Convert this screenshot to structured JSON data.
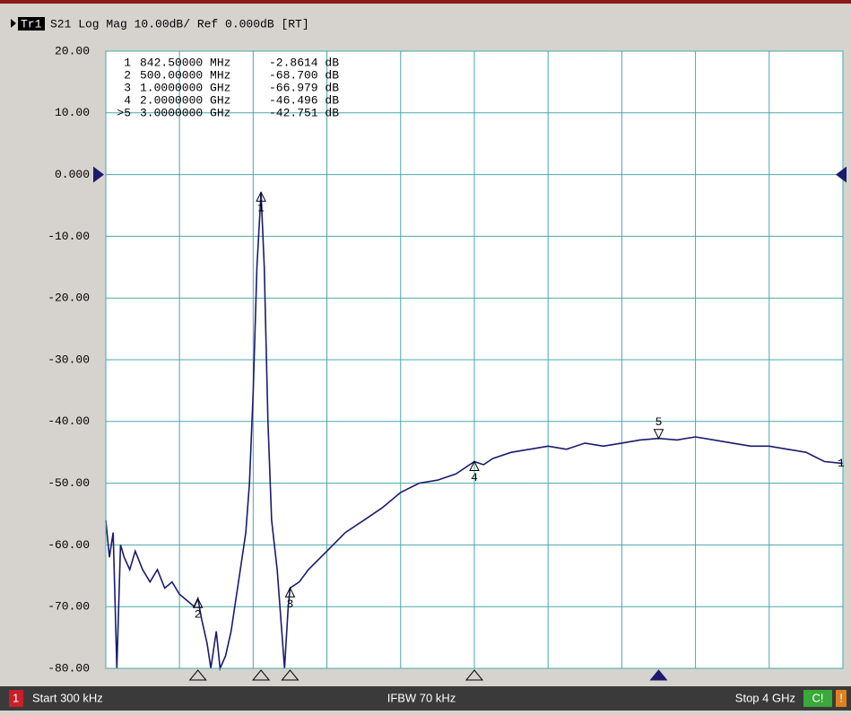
{
  "header": {
    "trace": "Tr1",
    "text": "S21 Log Mag 10.00dB/ Ref 0.000dB [RT]"
  },
  "status_bar": {
    "channel": "1",
    "start": "Start 300 kHz",
    "ifbw": "IFBW 70 kHz",
    "stop": "Stop 4 GHz",
    "cal": "C!",
    "warning": "!"
  },
  "markers": [
    {
      "id": "1",
      "stimulus": "842.50000 MHz",
      "response": "-2.8614 dB",
      "label": "1",
      "x": 0.8425,
      "y": -2.8614
    },
    {
      "id": "2",
      "stimulus": "500.00000 MHz",
      "response": "-68.700 dB",
      "label": "2",
      "x": 0.5,
      "y": -68.7
    },
    {
      "id": "3",
      "stimulus": "1.0000000 GHz",
      "response": "-66.979 dB",
      "label": "3",
      "x": 1.0,
      "y": -66.979
    },
    {
      "id": "4",
      "stimulus": "2.0000000 GHz",
      "response": "-46.496 dB",
      "label": "4",
      "x": 2.0,
      "y": -46.496
    },
    {
      "id": ">5",
      "stimulus": "3.0000000 GHz",
      "response": "-42.751 dB",
      "label": "5",
      "x": 3.0,
      "y": -42.751
    }
  ],
  "chart_data": {
    "type": "line",
    "trace_label": "1",
    "xlim": [
      0.0003,
      4
    ],
    "xticks": [
      0.4,
      0.8,
      1.2,
      1.6,
      2.0,
      2.4,
      2.8,
      3.2,
      3.6
    ],
    "ylim": [
      -80,
      20
    ],
    "yticks": [
      {
        "value": 20,
        "label": "20.00"
      },
      {
        "value": 10,
        "label": "10.00"
      },
      {
        "value": 0,
        "label": "0.000"
      },
      {
        "value": -10,
        "label": "-10.00"
      },
      {
        "value": -20,
        "label": "-20.00"
      },
      {
        "value": -30,
        "label": "-30.00"
      },
      {
        "value": -40,
        "label": "-40.00"
      },
      {
        "value": -50,
        "label": "-50.00"
      },
      {
        "value": -60,
        "label": "-60.00"
      },
      {
        "value": -70,
        "label": "-70.00"
      },
      {
        "value": -80,
        "label": "-80.00"
      }
    ],
    "grid": true,
    "x": [
      0.0003,
      0.02,
      0.04,
      0.06,
      0.08,
      0.1,
      0.13,
      0.16,
      0.2,
      0.24,
      0.28,
      0.32,
      0.36,
      0.4,
      0.44,
      0.48,
      0.5,
      0.52,
      0.55,
      0.57,
      0.6,
      0.62,
      0.65,
      0.68,
      0.7,
      0.73,
      0.76,
      0.78,
      0.8,
      0.82,
      0.8425,
      0.86,
      0.88,
      0.9,
      0.93,
      0.95,
      0.97,
      0.99,
      1.0,
      1.05,
      1.1,
      1.2,
      1.3,
      1.4,
      1.5,
      1.6,
      1.7,
      1.8,
      1.9,
      2.0,
      2.05,
      2.1,
      2.2,
      2.3,
      2.4,
      2.5,
      2.6,
      2.7,
      2.8,
      2.9,
      3.0,
      3.1,
      3.2,
      3.3,
      3.4,
      3.5,
      3.6,
      3.7,
      3.8,
      3.9,
      4.0
    ],
    "series": [
      {
        "color": "#1a1a6e",
        "values": [
          -56,
          -62,
          -58,
          -80,
          -60,
          -62,
          -64,
          -61,
          -64,
          -66,
          -64,
          -67,
          -66,
          -68,
          -69,
          -70,
          -68.7,
          -72,
          -76,
          -80,
          -74,
          -80,
          -78,
          -74,
          -70,
          -64,
          -58,
          -50,
          -35,
          -15,
          -2.8614,
          -15,
          -40,
          -56,
          -64,
          -72,
          -80,
          -70,
          -66.979,
          -66,
          -64,
          -61,
          -58,
          -56,
          -54,
          -51.5,
          -50,
          -49.5,
          -48.5,
          -46.496,
          -47,
          -46,
          -45,
          -44.5,
          -44,
          -44.5,
          -43.5,
          -44,
          -43.5,
          -43,
          -42.751,
          -43,
          -42.5,
          -43,
          -43.5,
          -44,
          -44,
          -44.5,
          -45,
          -46.5,
          -46.8
        ]
      }
    ]
  }
}
